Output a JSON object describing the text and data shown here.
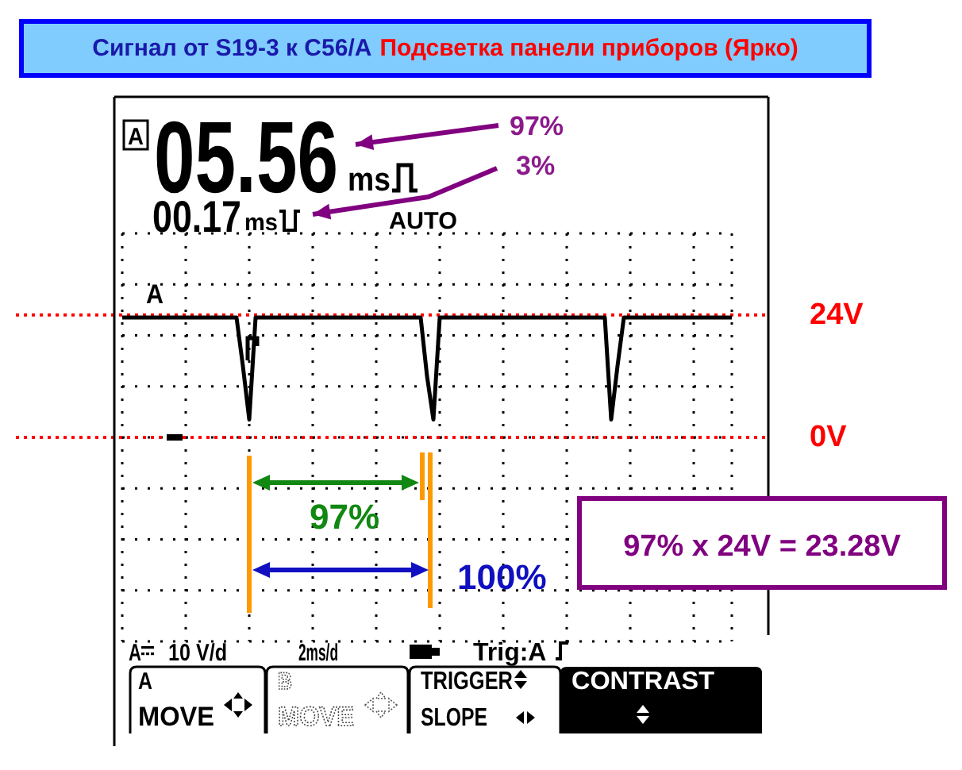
{
  "chart_data": {
    "type": "line",
    "title": "Сигнал от S19-3 к C56/A",
    "subtitle": "Подсветка панели приборов (Ярко)",
    "categories": [
      null,
      null,
      null,
      null,
      null,
      null,
      null,
      null,
      null,
      null,
      null,
      null,
      null,
      null,
      null,
      null,
      null,
      null,
      null,
      null,
      null,
      null,
      null,
      null,
      null,
      null,
      null,
      null,
      null,
      null,
      null,
      null,
      null,
      null,
      null,
      null,
      null,
      null,
      null,
      null,
      null,
      null,
      null,
      null,
      null,
      null,
      null,
      null,
      null,
      null,
      null,
      null,
      null,
      null,
      null,
      null,
      null,
      null,
      null,
      null,
      null,
      null,
      null,
      null,
      null,
      null,
      null,
      null,
      null,
      null,
      null,
      null,
      null,
      null,
      null,
      null,
      null,
      null,
      null,
      null,
      null,
      null,
      null,
      null,
      null,
      null,
      null,
      null,
      null,
      null,
      null,
      null,
      null,
      null,
      null,
      null,
      null
    ],
    "values": [
      23.5,
      23.5,
      23.5,
      23.5,
      23.5,
      23.5,
      23.5,
      23.5,
      23.5,
      23.5,
      23.5,
      23.5,
      23.5,
      23.5,
      23.5,
      23.5,
      23.5,
      23.5,
      23.5,
      14,
      3.5,
      23.5,
      23.5,
      23.5,
      23.5,
      23.5,
      23.5,
      23.5,
      23.5,
      23.5,
      23.5,
      23.5,
      23.5,
      23.5,
      23.5,
      23.5,
      23.5,
      23.5,
      23.5,
      23.5,
      23.5,
      23.5,
      23.5,
      23.5,
      23.5,
      23.5,
      23.5,
      23.5,
      12,
      3.5,
      23.5,
      23.5,
      23.5,
      23.5,
      23.5,
      23.5,
      23.5,
      23.5,
      23.5,
      23.5,
      23.5,
      23.5,
      23.5,
      23.5,
      23.5,
      23.5,
      23.5,
      23.5,
      23.5,
      23.5,
      23.5,
      23.5,
      23.5,
      23.5,
      23.5,
      23.5,
      23.5,
      3.5,
      14,
      23.5,
      23.5,
      23.5,
      23.5,
      23.5,
      23.5,
      23.5,
      23.5,
      23.5,
      23.5,
      23.5,
      23.5,
      23.5,
      23.5,
      23.5,
      23.5,
      23.5,
      23.5
    ],
    "color": "#000000",
    "line_style": "solid",
    "ylim": [
      -40,
      40
    ],
    "yticks": [
      {
        "value": -40,
        "label": null
      },
      {
        "value": -30,
        "label": null
      },
      {
        "value": -20,
        "label": null
      },
      {
        "value": -10,
        "label": null
      },
      {
        "value": 0,
        "label": null
      },
      {
        "value": 10,
        "label": null
      },
      {
        "value": 20,
        "label": null
      },
      {
        "value": 30,
        "label": null
      },
      {
        "value": 40,
        "label": null
      }
    ],
    "grid": true,
    "ref_lines": [
      {
        "axis": "y",
        "value": 24,
        "label": "24V",
        "color": "#ff0000",
        "line_style": "dotted"
      },
      {
        "axis": "y",
        "value": 0,
        "label": "0V",
        "color": "#ff0000",
        "line_style": "dotted"
      }
    ],
    "annotations": [
      "A",
      "05.56",
      "ms",
      "97%",
      "3%",
      "00.17",
      "ms",
      "AUTO",
      "A",
      "97%",
      "100%",
      "97% x 24V = 23.28V",
      "A",
      "10 V/d",
      "2ms/d",
      "Trig:A",
      "A",
      "MOVE",
      "B",
      "MOVE",
      "TRIGGER",
      "SLOPE",
      "CONTRAST"
    ]
  }
}
